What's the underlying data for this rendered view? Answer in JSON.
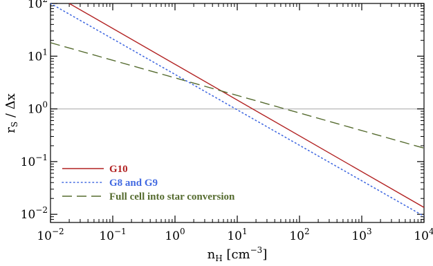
{
  "chart_data": {
    "type": "line",
    "xlabel": "n_H [cm^-3]",
    "xlabel_parts": {
      "base": "n",
      "sub": "H",
      "unit_open": " [cm",
      "unit_sup": "−3",
      "unit_close": "]"
    },
    "ylabel": "r_S / Δx",
    "ylabel_parts": {
      "base": "r",
      "sub": "S",
      "rest": " / Δx"
    },
    "xscale": "log",
    "yscale": "log",
    "xlim": [
      0.01,
      10000
    ],
    "ylim": [
      0.007,
      100
    ],
    "x_ticks": [
      {
        "value": 0.01,
        "base": "10",
        "exp": "−2"
      },
      {
        "value": 0.1,
        "base": "10",
        "exp": "−1"
      },
      {
        "value": 1,
        "base": "10",
        "exp": "0"
      },
      {
        "value": 10,
        "base": "10",
        "exp": "1"
      },
      {
        "value": 100,
        "base": "10",
        "exp": "2"
      },
      {
        "value": 1000,
        "base": "10",
        "exp": "3"
      },
      {
        "value": 10000,
        "base": "10",
        "exp": "4"
      }
    ],
    "y_ticks": [
      {
        "value": 0.01,
        "base": "10",
        "exp": "−2"
      },
      {
        "value": 0.1,
        "base": "10",
        "exp": "−1"
      },
      {
        "value": 1,
        "base": "10",
        "exp": "0"
      },
      {
        "value": 10,
        "base": "10",
        "exp": "1"
      },
      {
        "value": 100,
        "base": "10",
        "exp": "2"
      }
    ],
    "reference_line": {
      "y": 1,
      "color": "#b8b8b8"
    },
    "legend_position": "bottom-left",
    "series": [
      {
        "name": "G10",
        "color": "#b22222",
        "dash": "solid",
        "x": [
          0.02,
          10000
        ],
        "y": [
          100,
          0.0135
        ]
      },
      {
        "name": "G8 and G9",
        "color": "#4169e1",
        "dash": "dotted",
        "x": [
          0.01,
          10000
        ],
        "y": [
          100,
          0.0092
        ]
      },
      {
        "name": "Full cell into star conversion",
        "color": "#556b2f",
        "dash": "dashed",
        "x": [
          0.01,
          10000
        ],
        "y": [
          18,
          0.18
        ]
      }
    ]
  }
}
